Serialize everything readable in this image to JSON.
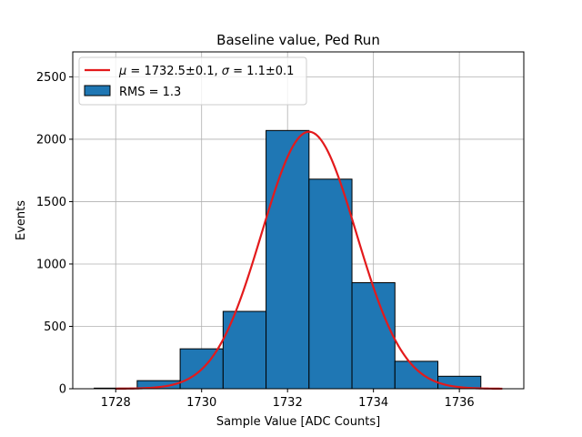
{
  "chart_data": {
    "type": "bar",
    "title": "Baseline value, Ped Run",
    "xlabel": "Sample Value [ADC Counts]",
    "ylabel": "Events",
    "xlim": [
      1727.0,
      1737.5
    ],
    "ylim": [
      0,
      2700
    ],
    "xticks": [
      1728,
      1730,
      1732,
      1734,
      1736
    ],
    "yticks": [
      0,
      500,
      1000,
      1500,
      2000,
      2500
    ],
    "grid": true,
    "legend_position": "top-left",
    "histogram": {
      "name": "RMS = 1.3",
      "color": "#1f77b4",
      "edge_color": "#000000",
      "bins": [
        {
          "lo": 1727.5,
          "hi": 1728.5,
          "value": 5
        },
        {
          "lo": 1728.5,
          "hi": 1729.5,
          "value": 65
        },
        {
          "lo": 1729.5,
          "hi": 1730.5,
          "value": 320
        },
        {
          "lo": 1730.5,
          "hi": 1731.5,
          "value": 620
        },
        {
          "lo": 1731.5,
          "hi": 1732.5,
          "value": 2070
        },
        {
          "lo": 1732.5,
          "hi": 1733.5,
          "value": 1680
        },
        {
          "lo": 1733.5,
          "hi": 1734.5,
          "value": 850
        },
        {
          "lo": 1734.5,
          "hi": 1735.5,
          "value": 220
        },
        {
          "lo": 1735.5,
          "hi": 1736.5,
          "value": 100
        }
      ]
    },
    "fit": {
      "name": "μ = 1732.5±0.1, σ = 1.1±0.1",
      "name_parts": {
        "mu": "μ",
        "mu_val": " = 1732.5±0.1, ",
        "sigma": "σ",
        "sigma_val": " = 1.1±0.1"
      },
      "color": "#e31a1c",
      "amplitude": 2060,
      "mean": 1732.5,
      "sigma": 1.1,
      "x_range": [
        1728.0,
        1737.0
      ]
    }
  }
}
